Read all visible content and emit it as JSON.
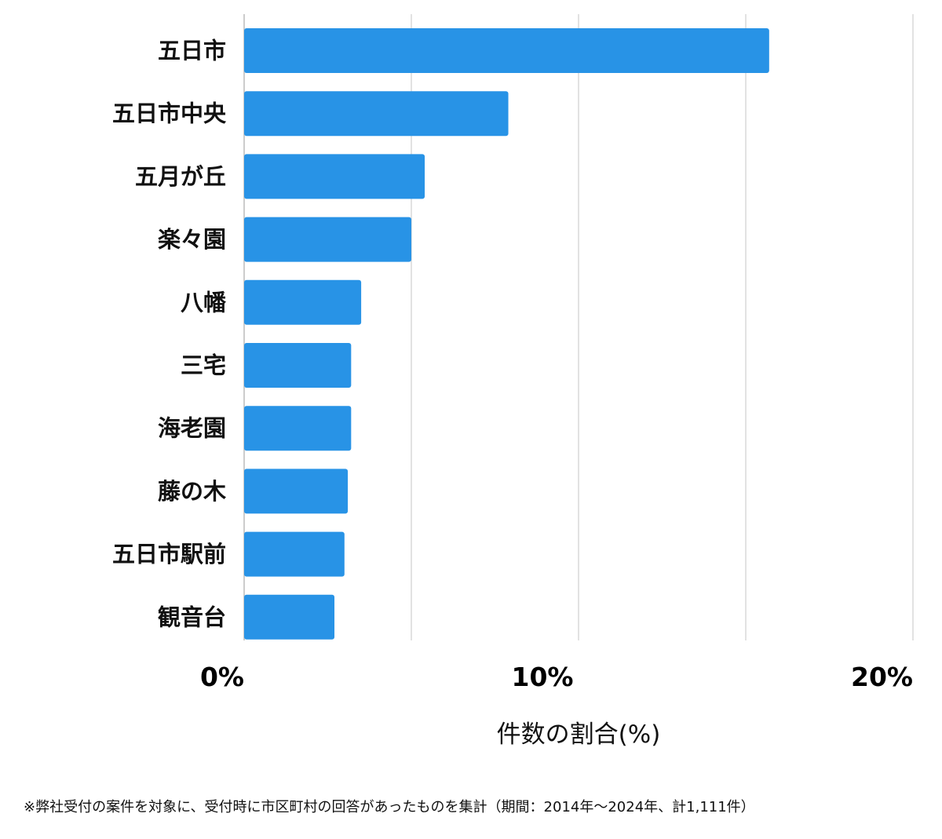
{
  "chart_data": {
    "type": "bar",
    "orientation": "horizontal",
    "categories": [
      "五日市",
      "五日市中央",
      "五月が丘",
      "楽々園",
      "八幡",
      "三宅",
      "海老園",
      "藤の木",
      "五日市駅前",
      "観音台"
    ],
    "values": [
      15.7,
      7.9,
      5.4,
      5.0,
      3.5,
      3.2,
      3.2,
      3.1,
      3.0,
      2.7
    ],
    "xlim": [
      0,
      20
    ],
    "xticks": [
      0,
      10,
      20
    ],
    "xtick_labels": [
      "0%",
      "10%",
      "20%"
    ],
    "grid_values": [
      0,
      5,
      10,
      15,
      20
    ],
    "grid": true,
    "xlabel": "件数の割合(%)",
    "ylabel": "",
    "title": "",
    "bar_color": "#2893e6",
    "grid_color": "#d9d9d9",
    "axis_color": "#cccccc"
  },
  "footnote": "※弊社受付の案件を対象に、受付時に市区町村の回答があったものを集計（期間：2014年～2024年、計1,111件）"
}
